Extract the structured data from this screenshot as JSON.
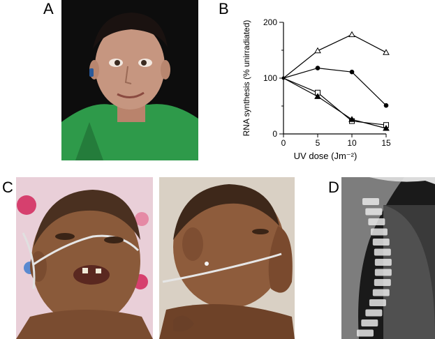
{
  "panels": {
    "a": {
      "label": "A",
      "description": "adult patient portrait, green hoodie, dark background"
    },
    "b": {
      "label": "B"
    },
    "c": {
      "label": "C",
      "description": "two photographs of an infant with nasal cannula"
    },
    "d": {
      "label": "D",
      "description": "lateral spine radiograph"
    }
  },
  "colors": {
    "photo_a_bg": "#0d0d0d",
    "hoodie": "#2e9a4a",
    "skin_a": "#c69680",
    "skin_c": "#8a5a3a",
    "xray_bg": "#1a1a1a"
  },
  "chart_data": {
    "type": "line",
    "x": [
      0,
      5,
      10,
      15
    ],
    "xlabel": "UV dose (Jm⁻²)",
    "ylabel": "RNA synthesis (% unirradiated)",
    "xlim": [
      0,
      15
    ],
    "ylim": [
      0,
      200
    ],
    "xticks": [
      "0",
      "5",
      "10",
      "15"
    ],
    "yticks": [
      "0",
      "100",
      "200"
    ],
    "grid": false,
    "series": [
      {
        "marker": "open-triangle",
        "values": [
          100,
          149,
          178,
          146
        ]
      },
      {
        "marker": "filled-circle",
        "values": [
          100,
          118,
          111,
          51
        ]
      },
      {
        "marker": "open-square",
        "values": [
          100,
          74,
          23,
          16
        ]
      },
      {
        "marker": "filled-triangle",
        "values": [
          100,
          67,
          26,
          10
        ]
      }
    ]
  }
}
